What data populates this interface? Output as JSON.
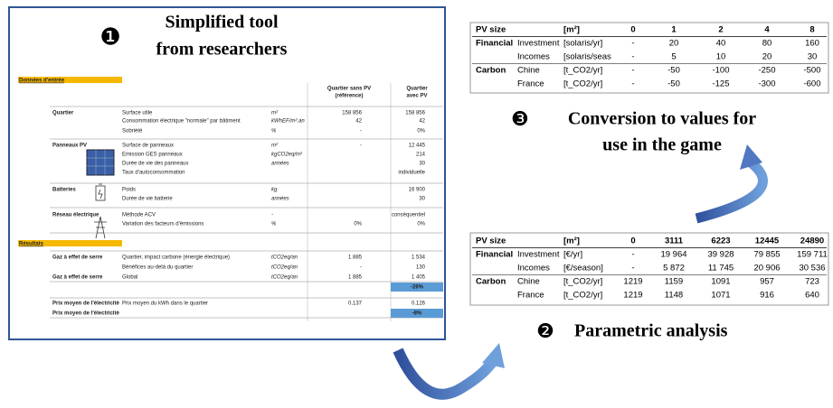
{
  "tool": {
    "marker": "❶",
    "title_lines": [
      "Simplified tool",
      "from researchers"
    ],
    "inputs_title": "Données d'entrée",
    "results_title": "Résultats",
    "col_ref": [
      "Quartier sans PV",
      "(référence)"
    ],
    "col_pv": [
      "Quartier",
      "avec PV"
    ],
    "rows": [
      {
        "group": "Quartier",
        "label": "Surface utile",
        "unit": "m²",
        "ref": "158 856",
        "pv": "158 856"
      },
      {
        "label": "Consommation électrique \"normale\" par bâtiment",
        "unit": "kWhEF/m².an",
        "ref": "42",
        "pv": "42"
      },
      {
        "label": "Sobriété",
        "unit": "%",
        "ref": "-",
        "pv": "0%"
      },
      {
        "group": "Panneaux PV",
        "label": "Surface de panneaux",
        "unit": "m²",
        "ref": "-",
        "pv": "12 445"
      },
      {
        "label": "Emission GES panneaux",
        "unit": "kgCO2eq/m²",
        "pv": "214"
      },
      {
        "label": "Durée de vie des panneaux",
        "unit": "années",
        "pv": "30"
      },
      {
        "label": "Taux d'autoconsommation",
        "pv": "individuelle"
      },
      {
        "group": "Batteries",
        "label": "Poids",
        "unit": "kg",
        "pv": "16 900"
      },
      {
        "label": "Durée de vie batterie",
        "unit": "années",
        "pv": "30"
      },
      {
        "group": "Réseau électrique",
        "label": "Méthode ACV",
        "unit": "-",
        "pv": "conséquentiel"
      },
      {
        "label": "Variation des facteurs d'émissions",
        "unit": "%",
        "ref": "0%",
        "pv": "0%"
      },
      {
        "group": "Gaz à effet de serre",
        "label": "Quartier, impact carbone (énergie électrique)",
        "unit": "tCO2eq/an",
        "ref": "1 885",
        "pv": "1 534"
      },
      {
        "label": "Bénéfices au-delà du quartier",
        "unit": "tCO2eq/an",
        "ref": "-",
        "pv": "130"
      },
      {
        "group": "Gaz à effet de serre",
        "label": "Global",
        "unit": "tCO2eq/an",
        "ref": "1 885",
        "pv": "1 405"
      },
      {
        "highlight": "-26%"
      },
      {
        "group": "Prix moyen de l'électricité",
        "label": "Prix moyen du kWh dans le quartier",
        "ref": "0.137",
        "pv": "0.126"
      },
      {
        "group": "Prix moyen de l'électricité",
        "highlight": "-8%"
      }
    ]
  },
  "top_table": {
    "rows": [
      [
        "PV size",
        null,
        "[m²]",
        0,
        1,
        2,
        4,
        8
      ],
      [
        "Financial",
        "Investment",
        "[solaris/yr]",
        "-",
        20,
        40,
        80,
        160
      ],
      [
        null,
        "Incomes",
        "[solaris/seas",
        "-",
        5,
        10,
        20,
        30
      ],
      [
        "Carbon",
        "Chine",
        "[t_CO2/yr]",
        "-",
        -50,
        -100,
        -250,
        -500
      ],
      [
        null,
        "France",
        "[t_CO2/yr]",
        "-",
        -50,
        -125,
        -300,
        -600
      ]
    ]
  },
  "conversion": {
    "marker": "❸",
    "lines": [
      "Conversion to values for",
      "use in the game"
    ]
  },
  "bottom_table": {
    "rows": [
      [
        "PV size",
        null,
        "[m²]",
        0,
        3111,
        6223,
        12445,
        24890
      ],
      [
        "Financial",
        "Investment",
        "[€/yr]",
        "-",
        "19 964",
        "39 928",
        "79 855",
        "159 711"
      ],
      [
        null,
        "Incomes",
        "[€/season]",
        "-",
        "5 872",
        "11 745",
        "20 906",
        "30 536"
      ],
      [
        "Carbon",
        "Chine",
        "[t_CO2/yr]",
        1219,
        1159,
        1091,
        957,
        723
      ],
      [
        null,
        "France",
        "[t_CO2/yr]",
        1219,
        1148,
        1071,
        916,
        640
      ]
    ]
  },
  "parametric": {
    "marker": "❷",
    "label": "Parametric analysis"
  }
}
